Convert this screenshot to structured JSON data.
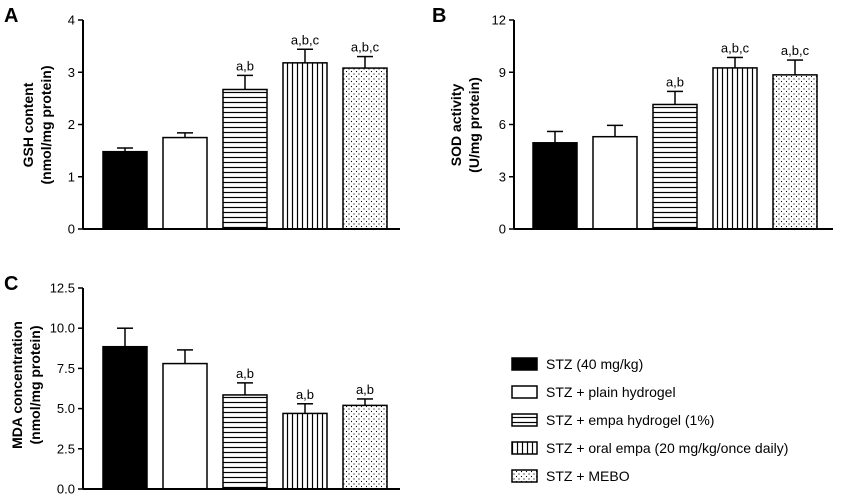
{
  "colors": {
    "ink": "#000000",
    "fill_white": "#ffffff"
  },
  "groups": [
    "STZ (40 mg/kg)",
    "STZ + plain hydrogel",
    "STZ + empa hydrogel (1%)",
    "STZ + oral empa (20 mg/kg/once daily)",
    "STZ + MEBO"
  ],
  "patterns": [
    "solid",
    "white",
    "horizontal-lines",
    "vertical-lines",
    "dots"
  ],
  "chart_data": [
    {
      "type": "bar",
      "panel": "A",
      "ylabel_line1": "GSH content",
      "ylabel_line2": "(nmol/mg protein)",
      "ylim": [
        0,
        4
      ],
      "ticks": [
        0,
        1,
        2,
        3,
        4
      ],
      "tick_labels": [
        "0",
        "1",
        "2",
        "3",
        "4"
      ],
      "values": [
        1.48,
        1.75,
        2.67,
        3.18,
        3.08
      ],
      "errors": [
        0.07,
        0.09,
        0.27,
        0.26,
        0.22
      ],
      "annotations": [
        "",
        "",
        "a,b",
        "a,b,c",
        "a,b,c"
      ]
    },
    {
      "type": "bar",
      "panel": "B",
      "ylabel_line1": "SOD activity",
      "ylabel_line2": "(U/mg protein)",
      "ylim": [
        0,
        12
      ],
      "ticks": [
        0,
        3,
        6,
        9,
        12
      ],
      "tick_labels": [
        "0",
        "3",
        "6",
        "9",
        "12"
      ],
      "values": [
        4.95,
        5.3,
        7.15,
        9.25,
        8.85
      ],
      "errors": [
        0.65,
        0.65,
        0.75,
        0.6,
        0.85
      ],
      "annotations": [
        "",
        "",
        "a,b",
        "a,b,c",
        "a,b,c"
      ]
    },
    {
      "type": "bar",
      "panel": "C",
      "ylabel_line1": "MDA concentration",
      "ylabel_line2": "(nmol/mg protein)",
      "ylim": [
        0,
        12.5
      ],
      "ticks": [
        0,
        2.5,
        5,
        7.5,
        10,
        12.5
      ],
      "tick_labels": [
        "0.0",
        "2.5",
        "5.0",
        "7.5",
        "10.0",
        "12.5"
      ],
      "values": [
        8.85,
        7.8,
        5.85,
        4.7,
        5.2
      ],
      "errors": [
        1.15,
        0.85,
        0.75,
        0.6,
        0.4
      ],
      "annotations": [
        "",
        "",
        "a,b",
        "a,b",
        "a,b"
      ]
    }
  ]
}
